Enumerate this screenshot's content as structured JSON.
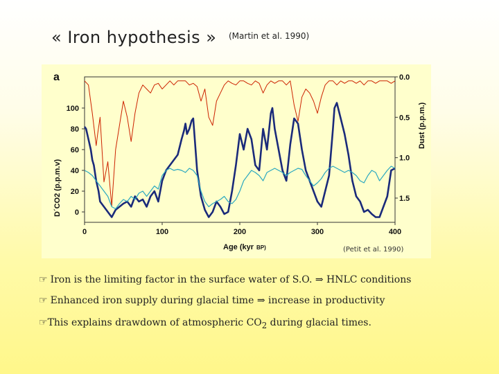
{
  "slide": {
    "title": "« Iron hypothesis »",
    "citation": "(Martin et al. 1990)"
  },
  "bullets": [
    {
      "glyph": "☞",
      "text": "Iron is the limiting factor in the surface water of  S.O.  ⇒  HNLC conditions"
    },
    {
      "glyph": "☞",
      "text": "Enhanced iron supply during glacial time ⇒ increase in productivity"
    },
    {
      "glyph": "☞",
      "text_pre": "This explains drawdown of atmospheric CO",
      "sub": "2",
      "text_post": " during glacial times."
    }
  ],
  "chart_data": {
    "type": "line",
    "panel_label": "a",
    "source": "(Petit et al. 1990)",
    "xlabel": "Age (kyr",
    "xlabel_sub": "BP)",
    "ylabel_left": "D´CO2 (p.p.m.v)",
    "ylabel_right": "Dust (p.p.m.)",
    "xlim": [
      0,
      400
    ],
    "ylim_left": [
      -10,
      130
    ],
    "ylim_right_dust": [
      0.0,
      1.8
    ],
    "x_ticks": [
      "0",
      "100",
      "200",
      "300",
      "400"
    ],
    "y_ticks_left": [
      "0",
      "20",
      "40",
      "60",
      "80",
      "100"
    ],
    "y_ticks_right": [
      "0.0",
      "0.5",
      "1.0",
      "1.5"
    ],
    "background_color": "#ffffcc",
    "series": [
      {
        "color": "#cc2200",
        "axis": "right",
        "x": [
          0,
          5,
          10,
          15,
          17,
          20,
          25,
          30,
          35,
          40,
          45,
          50,
          55,
          60,
          65,
          70,
          75,
          80,
          85,
          90,
          95,
          100,
          105,
          110,
          115,
          120,
          125,
          130,
          135,
          140,
          145,
          150,
          155,
          160,
          165,
          170,
          175,
          180,
          185,
          190,
          195,
          200,
          205,
          210,
          215,
          220,
          225,
          230,
          235,
          240,
          245,
          250,
          255,
          260,
          265,
          270,
          275,
          280,
          285,
          290,
          295,
          300,
          305,
          310,
          315,
          320,
          325,
          330,
          335,
          340,
          345,
          350,
          355,
          360,
          365,
          370,
          375,
          380,
          385,
          390,
          395,
          400
        ],
        "values": [
          0.05,
          0.1,
          0.45,
          0.85,
          0.7,
          0.5,
          1.3,
          1.05,
          1.6,
          0.9,
          0.6,
          0.3,
          0.5,
          0.8,
          0.45,
          0.2,
          0.1,
          0.15,
          0.2,
          0.1,
          0.08,
          0.15,
          0.1,
          0.05,
          0.1,
          0.05,
          0.05,
          0.05,
          0.1,
          0.08,
          0.12,
          0.3,
          0.15,
          0.5,
          0.6,
          0.3,
          0.2,
          0.1,
          0.05,
          0.08,
          0.1,
          0.05,
          0.05,
          0.08,
          0.1,
          0.05,
          0.08,
          0.2,
          0.1,
          0.05,
          0.08,
          0.05,
          0.05,
          0.1,
          0.05,
          0.35,
          0.55,
          0.25,
          0.15,
          0.2,
          0.3,
          0.45,
          0.25,
          0.1,
          0.05,
          0.05,
          0.1,
          0.05,
          0.08,
          0.05,
          0.05,
          0.08,
          0.05,
          0.1,
          0.05,
          0.05,
          0.08,
          0.05,
          0.05,
          0.05,
          0.08,
          0.05
        ]
      },
      {
        "color": "#1a2a7a",
        "axis": "left",
        "x": [
          0,
          2,
          5,
          8,
          10,
          12,
          15,
          18,
          20,
          25,
          30,
          35,
          40,
          45,
          50,
          55,
          60,
          65,
          70,
          75,
          80,
          85,
          90,
          95,
          100,
          105,
          110,
          115,
          120,
          125,
          128,
          130,
          132,
          135,
          138,
          140,
          145,
          150,
          155,
          160,
          165,
          170,
          175,
          180,
          185,
          190,
          195,
          200,
          205,
          210,
          215,
          220,
          225,
          230,
          235,
          240,
          242,
          245,
          250,
          255,
          260,
          265,
          270,
          275,
          280,
          285,
          290,
          295,
          300,
          305,
          310,
          315,
          320,
          322,
          325,
          330,
          335,
          340,
          345,
          350,
          355,
          360,
          365,
          370,
          375,
          380,
          385,
          390,
          395,
          400
        ],
        "values": [
          82,
          80,
          70,
          60,
          50,
          45,
          30,
          20,
          10,
          5,
          0,
          -5,
          2,
          5,
          8,
          10,
          5,
          15,
          10,
          12,
          5,
          15,
          20,
          10,
          30,
          40,
          45,
          50,
          55,
          70,
          78,
          85,
          75,
          80,
          88,
          90,
          40,
          15,
          2,
          -5,
          0,
          10,
          5,
          -2,
          0,
          20,
          45,
          75,
          60,
          80,
          70,
          45,
          40,
          80,
          60,
          95,
          100,
          80,
          60,
          40,
          30,
          65,
          90,
          85,
          60,
          40,
          30,
          20,
          10,
          5,
          20,
          35,
          80,
          100,
          105,
          90,
          75,
          55,
          30,
          15,
          10,
          0,
          2,
          -2,
          -5,
          -5,
          5,
          15,
          40,
          42
        ]
      },
      {
        "color": "#2aa8c0",
        "axis": "left",
        "x": [
          0,
          5,
          10,
          15,
          20,
          25,
          30,
          35,
          40,
          45,
          50,
          55,
          60,
          65,
          70,
          75,
          80,
          85,
          90,
          95,
          100,
          105,
          110,
          115,
          120,
          125,
          130,
          135,
          140,
          145,
          150,
          155,
          160,
          165,
          170,
          175,
          180,
          185,
          190,
          195,
          200,
          205,
          210,
          215,
          220,
          225,
          230,
          235,
          240,
          245,
          250,
          255,
          260,
          265,
          270,
          275,
          280,
          285,
          290,
          295,
          300,
          305,
          310,
          315,
          320,
          325,
          330,
          335,
          340,
          345,
          350,
          355,
          360,
          365,
          370,
          375,
          380,
          385,
          390,
          395,
          400
        ],
        "values": [
          40,
          38,
          35,
          30,
          25,
          20,
          15,
          5,
          3,
          8,
          12,
          10,
          15,
          12,
          18,
          20,
          15,
          20,
          25,
          22,
          35,
          40,
          42,
          40,
          41,
          40,
          38,
          42,
          40,
          35,
          20,
          10,
          5,
          8,
          10,
          12,
          15,
          10,
          8,
          12,
          20,
          30,
          35,
          40,
          38,
          35,
          30,
          38,
          40,
          42,
          40,
          38,
          35,
          38,
          40,
          42,
          41,
          35,
          30,
          25,
          28,
          32,
          38,
          42,
          44,
          42,
          40,
          38,
          40,
          38,
          35,
          30,
          28,
          35,
          40,
          38,
          30,
          35,
          40,
          44,
          42
        ]
      }
    ]
  }
}
